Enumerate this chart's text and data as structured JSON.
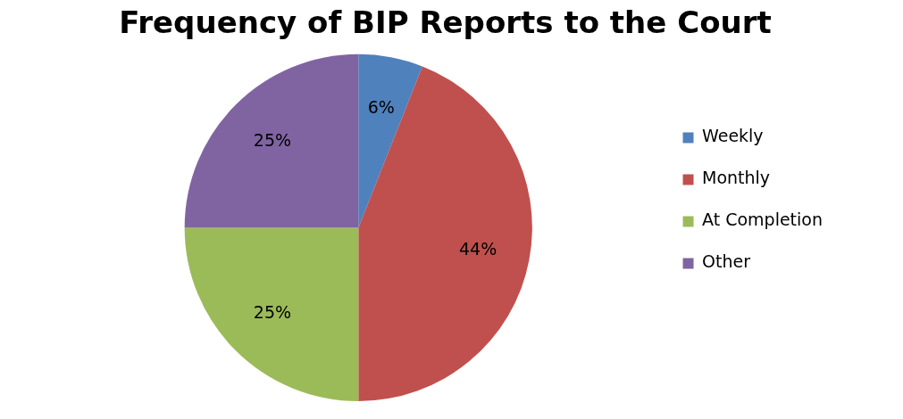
{
  "chart_data": {
    "type": "pie",
    "title": "Frequency of BIP Reports to the Court",
    "categories": [
      "Weekly",
      "Monthly",
      "At Completion",
      "Other"
    ],
    "values": [
      6,
      44,
      25,
      25
    ],
    "colors": [
      "#4f81bd",
      "#c0504d",
      "#9bbb59",
      "#8064a2"
    ],
    "value_labels": [
      "6%",
      "44%",
      "25%",
      "25%"
    ],
    "legend": "right"
  }
}
